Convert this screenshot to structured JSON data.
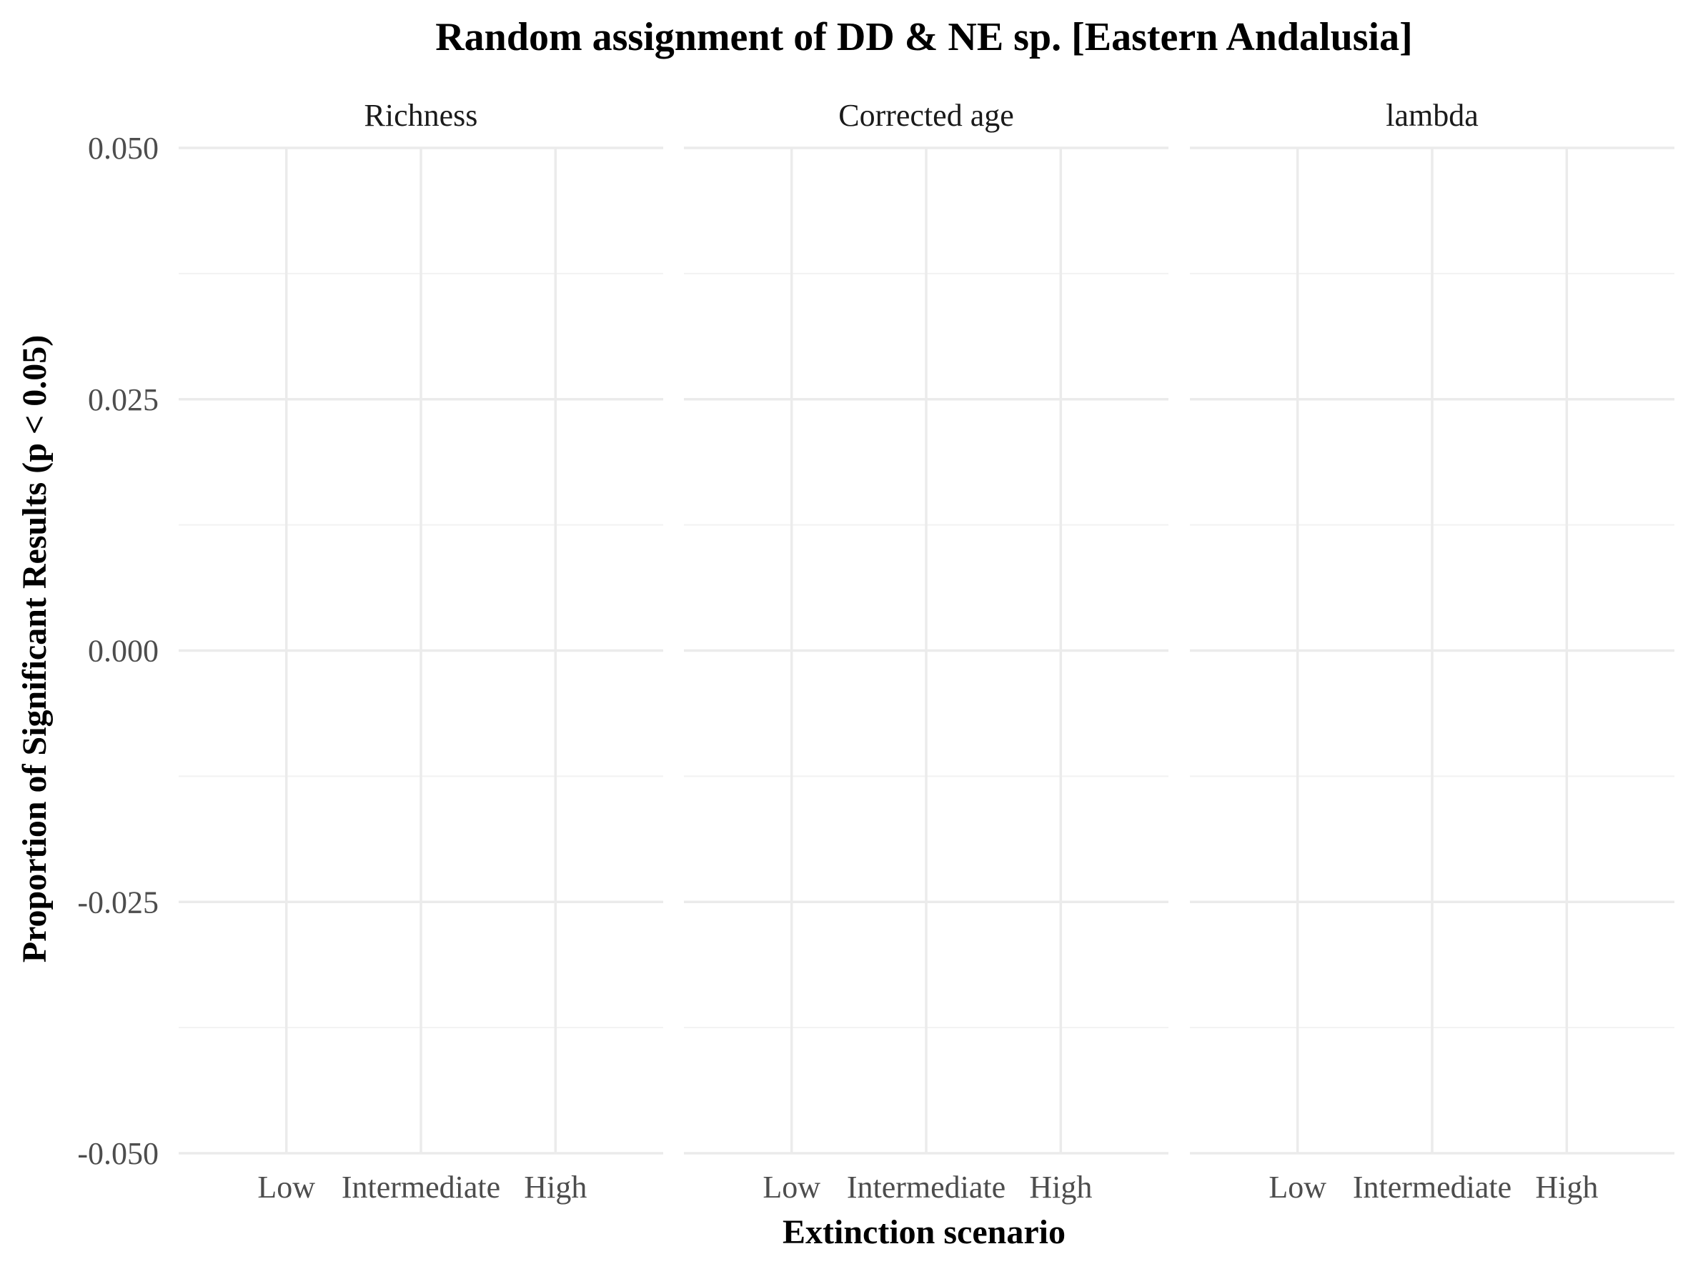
{
  "chart_data": {
    "type": "bar",
    "title": "Random assignment of DD & NE sp. [Eastern Andalusia]",
    "xlabel": "Extinction scenario",
    "ylabel": "Proportion of Significant Results (p < 0.05)",
    "categories": [
      "Low",
      "Intermediate",
      "High"
    ],
    "facets": [
      "Richness",
      "Corrected age",
      "lambda"
    ],
    "ylim": [
      -0.05,
      0.05
    ],
    "yticks": [
      0.05,
      0.025,
      0,
      -0.025,
      -0.05
    ],
    "ytick_labels": [
      "0.050",
      "0.025",
      "0.000",
      "-0.025",
      "-0.050"
    ],
    "series": [],
    "grid": true,
    "legend": "none"
  }
}
